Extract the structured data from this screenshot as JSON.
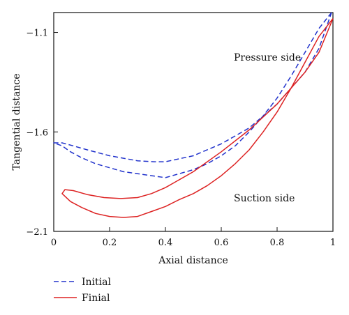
{
  "chart_data": {
    "type": "line",
    "xlabel": "Axial distance",
    "ylabel": "Tangential distance",
    "xlim": [
      0,
      1
    ],
    "ylim": [
      -2.1,
      -1.0
    ],
    "x_ticks": [
      "0",
      "0.2",
      "0.4",
      "0.6",
      "0.8",
      "1"
    ],
    "y_ticks": [
      "-1.1",
      "-1.6",
      "-2.1"
    ],
    "grid": false,
    "legend_position": "bottom-left",
    "annotations": [
      "Pressure side",
      "Suction side"
    ],
    "series": [
      {
        "name": "Initial",
        "color": "#2233cc",
        "style": "dashed",
        "points": [
          [
            0.995,
            -1.0
          ],
          [
            0.95,
            -1.08
          ],
          [
            0.9,
            -1.2
          ],
          [
            0.85,
            -1.32
          ],
          [
            0.8,
            -1.43
          ],
          [
            0.75,
            -1.52
          ],
          [
            0.7,
            -1.6
          ],
          [
            0.65,
            -1.67
          ],
          [
            0.6,
            -1.72
          ],
          [
            0.55,
            -1.76
          ],
          [
            0.5,
            -1.79
          ],
          [
            0.45,
            -1.81
          ],
          [
            0.4,
            -1.83
          ],
          [
            0.35,
            -1.82
          ],
          [
            0.3,
            -1.81
          ],
          [
            0.25,
            -1.8
          ],
          [
            0.2,
            -1.78
          ],
          [
            0.15,
            -1.76
          ],
          [
            0.1,
            -1.73
          ],
          [
            0.06,
            -1.7
          ],
          [
            0.03,
            -1.67
          ],
          [
            0.0,
            -1.655
          ],
          [
            0.03,
            -1.655
          ],
          [
            0.07,
            -1.67
          ],
          [
            0.12,
            -1.69
          ],
          [
            0.2,
            -1.72
          ],
          [
            0.3,
            -1.745
          ],
          [
            0.36,
            -1.75
          ],
          [
            0.4,
            -1.75
          ],
          [
            0.5,
            -1.72
          ],
          [
            0.6,
            -1.66
          ],
          [
            0.7,
            -1.58
          ],
          [
            0.8,
            -1.46
          ],
          [
            0.9,
            -1.3
          ],
          [
            0.95,
            -1.18
          ],
          [
            0.995,
            -1.0
          ]
        ]
      },
      {
        "name": "Finial",
        "color": "#dd2222",
        "style": "solid",
        "points": [
          [
            1.0,
            -1.03
          ],
          [
            0.95,
            -1.12
          ],
          [
            0.9,
            -1.25
          ],
          [
            0.85,
            -1.38
          ],
          [
            0.8,
            -1.5
          ],
          [
            0.75,
            -1.6
          ],
          [
            0.7,
            -1.69
          ],
          [
            0.65,
            -1.76
          ],
          [
            0.6,
            -1.82
          ],
          [
            0.55,
            -1.87
          ],
          [
            0.5,
            -1.91
          ],
          [
            0.45,
            -1.94
          ],
          [
            0.4,
            -1.975
          ],
          [
            0.35,
            -2.0
          ],
          [
            0.3,
            -2.025
          ],
          [
            0.25,
            -2.03
          ],
          [
            0.2,
            -2.025
          ],
          [
            0.15,
            -2.01
          ],
          [
            0.1,
            -1.98
          ],
          [
            0.06,
            -1.95
          ],
          [
            0.03,
            -1.91
          ],
          [
            0.04,
            -1.89
          ],
          [
            0.07,
            -1.895
          ],
          [
            0.12,
            -1.915
          ],
          [
            0.18,
            -1.93
          ],
          [
            0.24,
            -1.935
          ],
          [
            0.3,
            -1.93
          ],
          [
            0.35,
            -1.91
          ],
          [
            0.4,
            -1.88
          ],
          [
            0.5,
            -1.8
          ],
          [
            0.6,
            -1.7
          ],
          [
            0.7,
            -1.59
          ],
          [
            0.8,
            -1.46
          ],
          [
            0.9,
            -1.3
          ],
          [
            0.95,
            -1.2
          ],
          [
            1.0,
            -1.03
          ]
        ]
      }
    ]
  }
}
